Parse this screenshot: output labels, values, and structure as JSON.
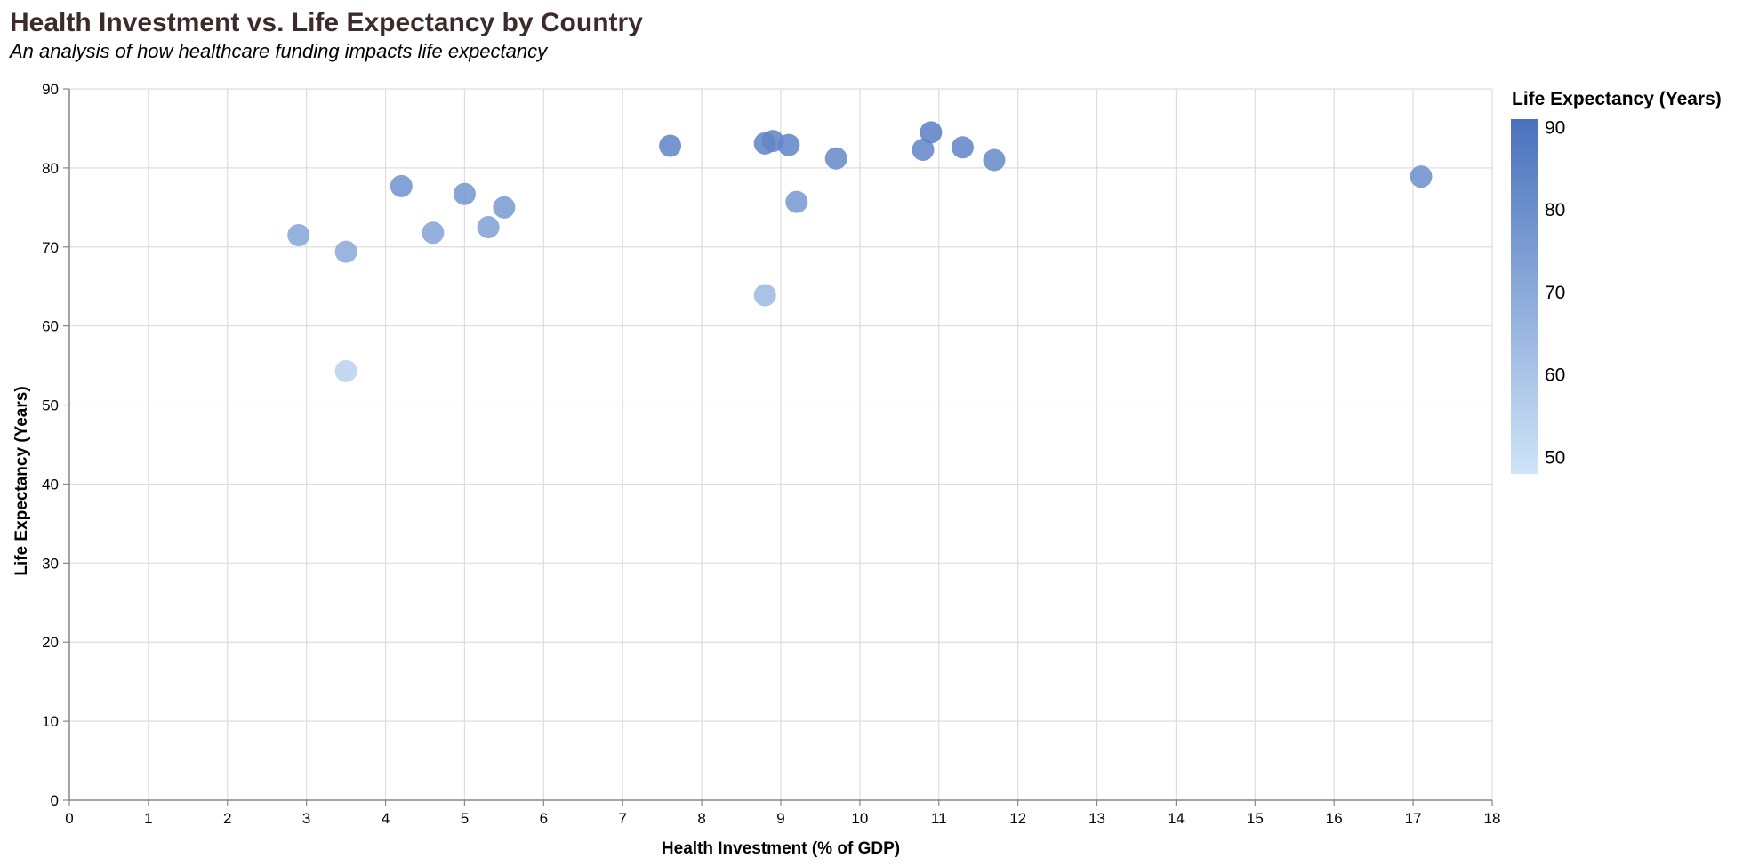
{
  "colors": {
    "title": "#3d2b2b",
    "grid": "#dddddd",
    "axis": "#888888",
    "point_low": "#cfe4f8",
    "point_high": "#4a72bd"
  },
  "chart_data": {
    "type": "scatter",
    "title": "Health Investment vs. Life Expectancy by Country",
    "subtitle": "An analysis of how healthcare funding impacts life expectancy",
    "xlabel": "Health Investment (% of GDP)",
    "ylabel": "Life Expectancy (Years)",
    "xlim": [
      0,
      18
    ],
    "ylim": [
      0,
      90
    ],
    "x_ticks": [
      0,
      1,
      2,
      3,
      4,
      5,
      6,
      7,
      8,
      9,
      10,
      11,
      12,
      13,
      14,
      15,
      16,
      17,
      18
    ],
    "y_ticks": [
      0,
      10,
      20,
      30,
      40,
      50,
      60,
      70,
      80,
      90
    ],
    "grid": true,
    "legend": {
      "title": "Life Expectancy (Years)",
      "placement": "right",
      "type": "color-gradient",
      "range": [
        48,
        91
      ],
      "ticks": [
        50,
        60,
        70,
        80,
        90
      ]
    },
    "points": [
      {
        "x": 2.9,
        "y": 71.5
      },
      {
        "x": 3.5,
        "y": 69.4
      },
      {
        "x": 3.5,
        "y": 54.3
      },
      {
        "x": 4.2,
        "y": 77.7
      },
      {
        "x": 4.6,
        "y": 71.8
      },
      {
        "x": 5.0,
        "y": 76.7
      },
      {
        "x": 5.3,
        "y": 72.5
      },
      {
        "x": 5.5,
        "y": 75.0
      },
      {
        "x": 7.6,
        "y": 82.8
      },
      {
        "x": 8.8,
        "y": 83.1
      },
      {
        "x": 8.8,
        "y": 63.9
      },
      {
        "x": 8.9,
        "y": 83.4
      },
      {
        "x": 9.1,
        "y": 82.9
      },
      {
        "x": 9.2,
        "y": 75.7
      },
      {
        "x": 9.7,
        "y": 81.2
      },
      {
        "x": 10.8,
        "y": 82.3
      },
      {
        "x": 10.9,
        "y": 84.5
      },
      {
        "x": 11.3,
        "y": 82.6
      },
      {
        "x": 11.7,
        "y": 81.0
      },
      {
        "x": 17.1,
        "y": 78.9
      }
    ]
  }
}
